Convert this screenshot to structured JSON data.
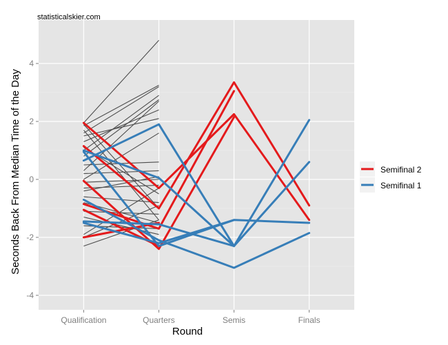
{
  "chart_data": {
    "type": "line",
    "watermark": "statisticalskier.com",
    "xlabel": "Round",
    "ylabel": "Seconds Back From Median Time of the Day",
    "categories": [
      "Qualification",
      "Quarters",
      "Semis",
      "Finals"
    ],
    "ylim": [
      -4.5,
      5.5
    ],
    "yticks": [
      -4,
      -2,
      0,
      2,
      4
    ],
    "grid": true,
    "legend_position": "right",
    "colors": {
      "panel_bg": "#e5e5e5",
      "grid": "#ffffff",
      "background_line": "#4d4d4d",
      "semifinal2": "#e41a1c",
      "semifinal1": "#377eb8"
    },
    "legend": [
      {
        "name": "Semifinal 2",
        "key": "semifinal2"
      },
      {
        "name": "Semifinal 1",
        "key": "semifinal1"
      }
    ],
    "background_series": [
      [
        1.95,
        4.8
      ],
      [
        1.85,
        3.25
      ],
      [
        1.6,
        3.2
      ],
      [
        1.3,
        2.4
      ],
      [
        1.5,
        2.1
      ],
      [
        1.0,
        2.9
      ],
      [
        0.8,
        2.75
      ],
      [
        0.5,
        0.6
      ],
      [
        0.2,
        0.3
      ],
      [
        0.0,
        1.6
      ],
      [
        -0.1,
        0.0
      ],
      [
        -0.3,
        -0.2
      ],
      [
        -0.6,
        -0.8
      ],
      [
        -0.8,
        -1.5
      ],
      [
        -1.1,
        -1.2
      ],
      [
        -1.3,
        -1.9
      ],
      [
        -1.6,
        -1.7
      ],
      [
        -2.0,
        -0.9
      ],
      [
        -2.3,
        -1.4
      ],
      [
        1.1,
        -0.5
      ],
      [
        1.9,
        -1.0
      ],
      [
        0.3,
        2.7
      ],
      [
        -0.4,
        0.1
      ],
      [
        1.7,
        -1.4
      ],
      [
        -1.9,
        -0.3
      ]
    ],
    "series": [
      {
        "name": "Semifinal 2",
        "key": "semifinal2",
        "lines": [
          [
            1.95,
            -0.3,
            2.25,
            -1.4
          ],
          [
            1.15,
            -1.0,
            3.35,
            -0.9
          ],
          [
            -0.05,
            -2.4,
            2.15,
            null
          ],
          [
            -0.85,
            -1.7,
            3.05,
            null
          ],
          [
            -1.05,
            -2.3,
            null,
            null
          ],
          [
            -2.0,
            -1.5,
            null,
            null
          ]
        ]
      },
      {
        "name": "Semifinal 1",
        "key": "semifinal1",
        "lines": [
          [
            0.65,
            1.9,
            -2.3,
            0.6
          ],
          [
            1.0,
            0.05,
            -2.3,
            2.05
          ],
          [
            0.95,
            -2.3,
            -1.4,
            -1.5
          ],
          [
            -0.7,
            -2.1,
            -3.05,
            -1.85
          ],
          [
            -1.45,
            -1.55,
            -2.3,
            null
          ],
          [
            -1.5,
            -2.2,
            -1.4,
            null
          ]
        ]
      }
    ]
  }
}
